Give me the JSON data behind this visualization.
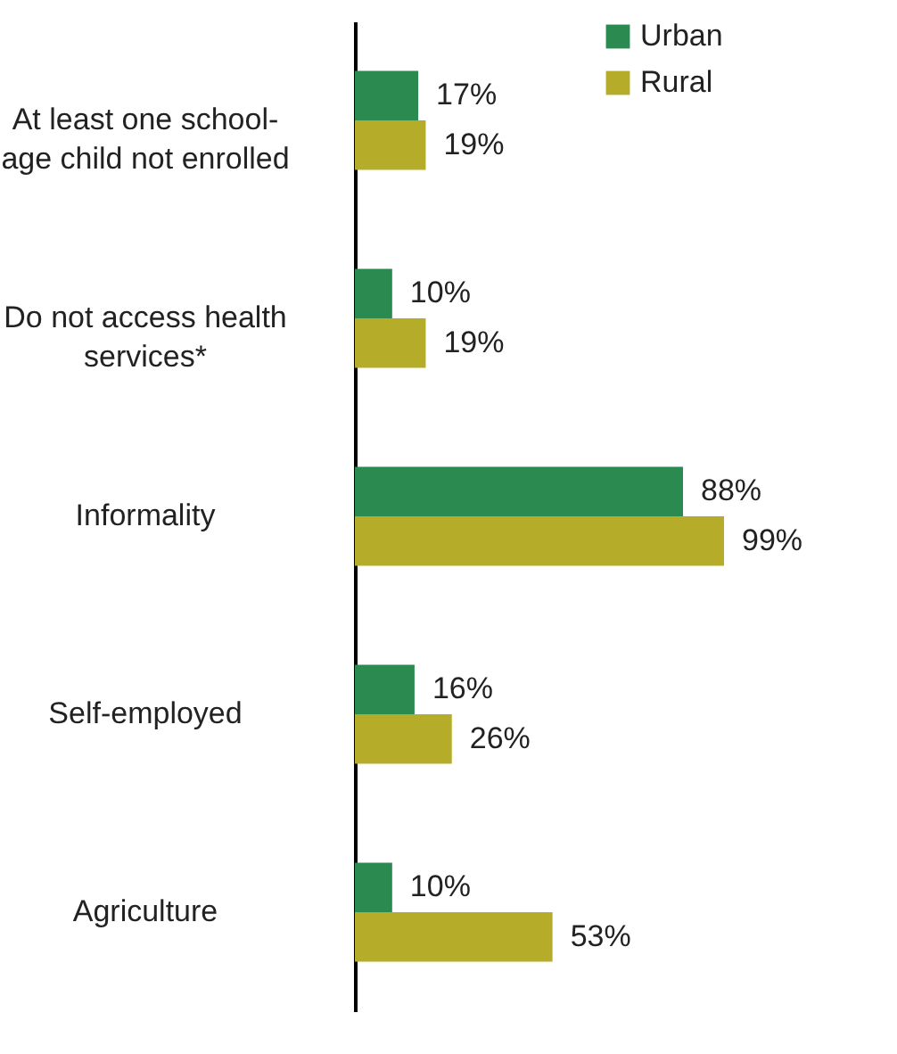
{
  "chart_data": {
    "type": "bar",
    "orientation": "horizontal",
    "categories": [
      "At least one school-age child not enrolled",
      "Do not access health services*",
      "Informality",
      "Self-employed",
      "Agriculture"
    ],
    "series": [
      {
        "name": "Urban",
        "color": "#2a8a4f",
        "values": [
          17,
          10,
          88,
          16,
          10
        ],
        "value_labels": [
          "17%",
          "10%",
          "88%",
          "16%",
          "10%"
        ]
      },
      {
        "name": "Rural",
        "color": "#b5ad2a",
        "values": [
          19,
          19,
          99,
          26,
          53
        ],
        "value_labels": [
          "19%",
          "19%",
          "99%",
          "26%",
          "53%"
        ]
      }
    ],
    "legend": "top right"
  }
}
